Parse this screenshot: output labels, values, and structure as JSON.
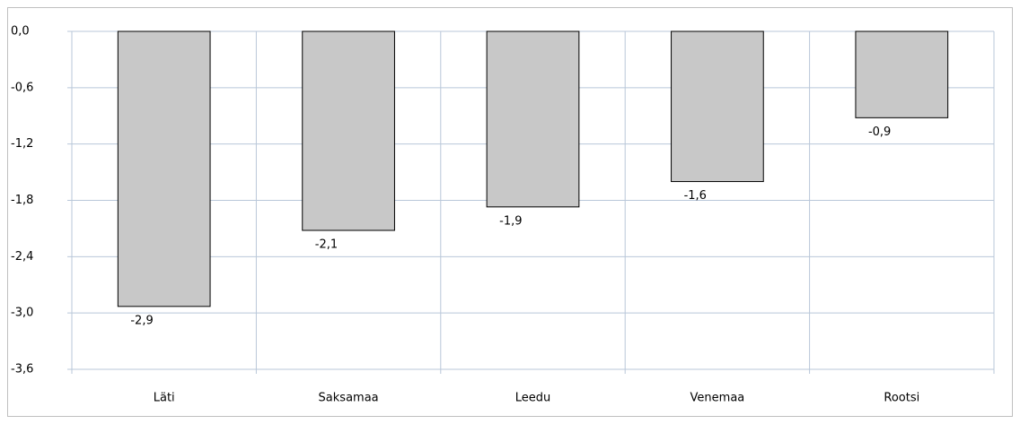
{
  "chart_data": {
    "type": "bar",
    "categories": [
      "Läti",
      "Saksamaa",
      "Leedu",
      "Venemaa",
      "Rootsi"
    ],
    "values": [
      -2.93,
      -2.12,
      -1.87,
      -1.6,
      -0.92
    ],
    "value_labels": [
      "-2,9",
      "-2,1",
      "-1,9",
      "-1,6",
      "-0,9"
    ],
    "color": "#c8c8c8",
    "ylim": [
      -3.6,
      0
    ],
    "yticks": [
      {
        "value": 0,
        "label": "0,0"
      },
      {
        "value": -0.6,
        "label": "-0,6"
      },
      {
        "value": -1.2,
        "label": "-1,2"
      },
      {
        "value": -1.8,
        "label": "-1,8"
      },
      {
        "value": -2.4,
        "label": "-2,4"
      },
      {
        "value": -3.0,
        "label": "-3,0"
      },
      {
        "value": -3.6,
        "label": "-3,6"
      }
    ],
    "grid": true
  }
}
